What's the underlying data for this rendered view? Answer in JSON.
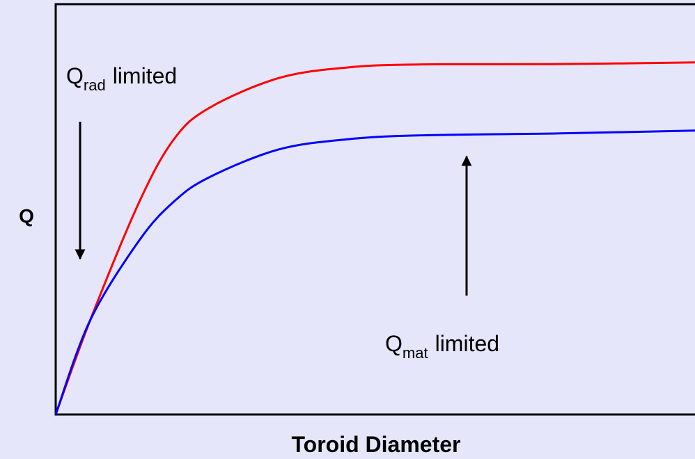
{
  "chart_data": {
    "type": "line",
    "xlabel": "Toroid Diameter",
    "ylabel": "Q",
    "xlim": [
      0,
      100
    ],
    "ylim": [
      0,
      100
    ],
    "x": [
      0,
      5.4,
      13.1,
      18.5,
      24,
      34.9,
      45.8,
      56.6,
      78.4,
      100
    ],
    "series": [
      {
        "color": "#ff0000",
        "values": [
          0,
          23,
          51.9,
          67.1,
          74.7,
          82,
          84.6,
          85.3,
          85.4,
          85.8
        ]
      },
      {
        "color": "#0000ff",
        "values": [
          0,
          23,
          42.5,
          51.9,
          57.8,
          64.6,
          67.1,
          68,
          68.5,
          69.2
        ]
      }
    ],
    "annotations": [
      {
        "main": "Q",
        "sub": "rad",
        "text": "limited"
      },
      {
        "main": "Q",
        "sub": "mat",
        "text": "limited"
      }
    ]
  }
}
